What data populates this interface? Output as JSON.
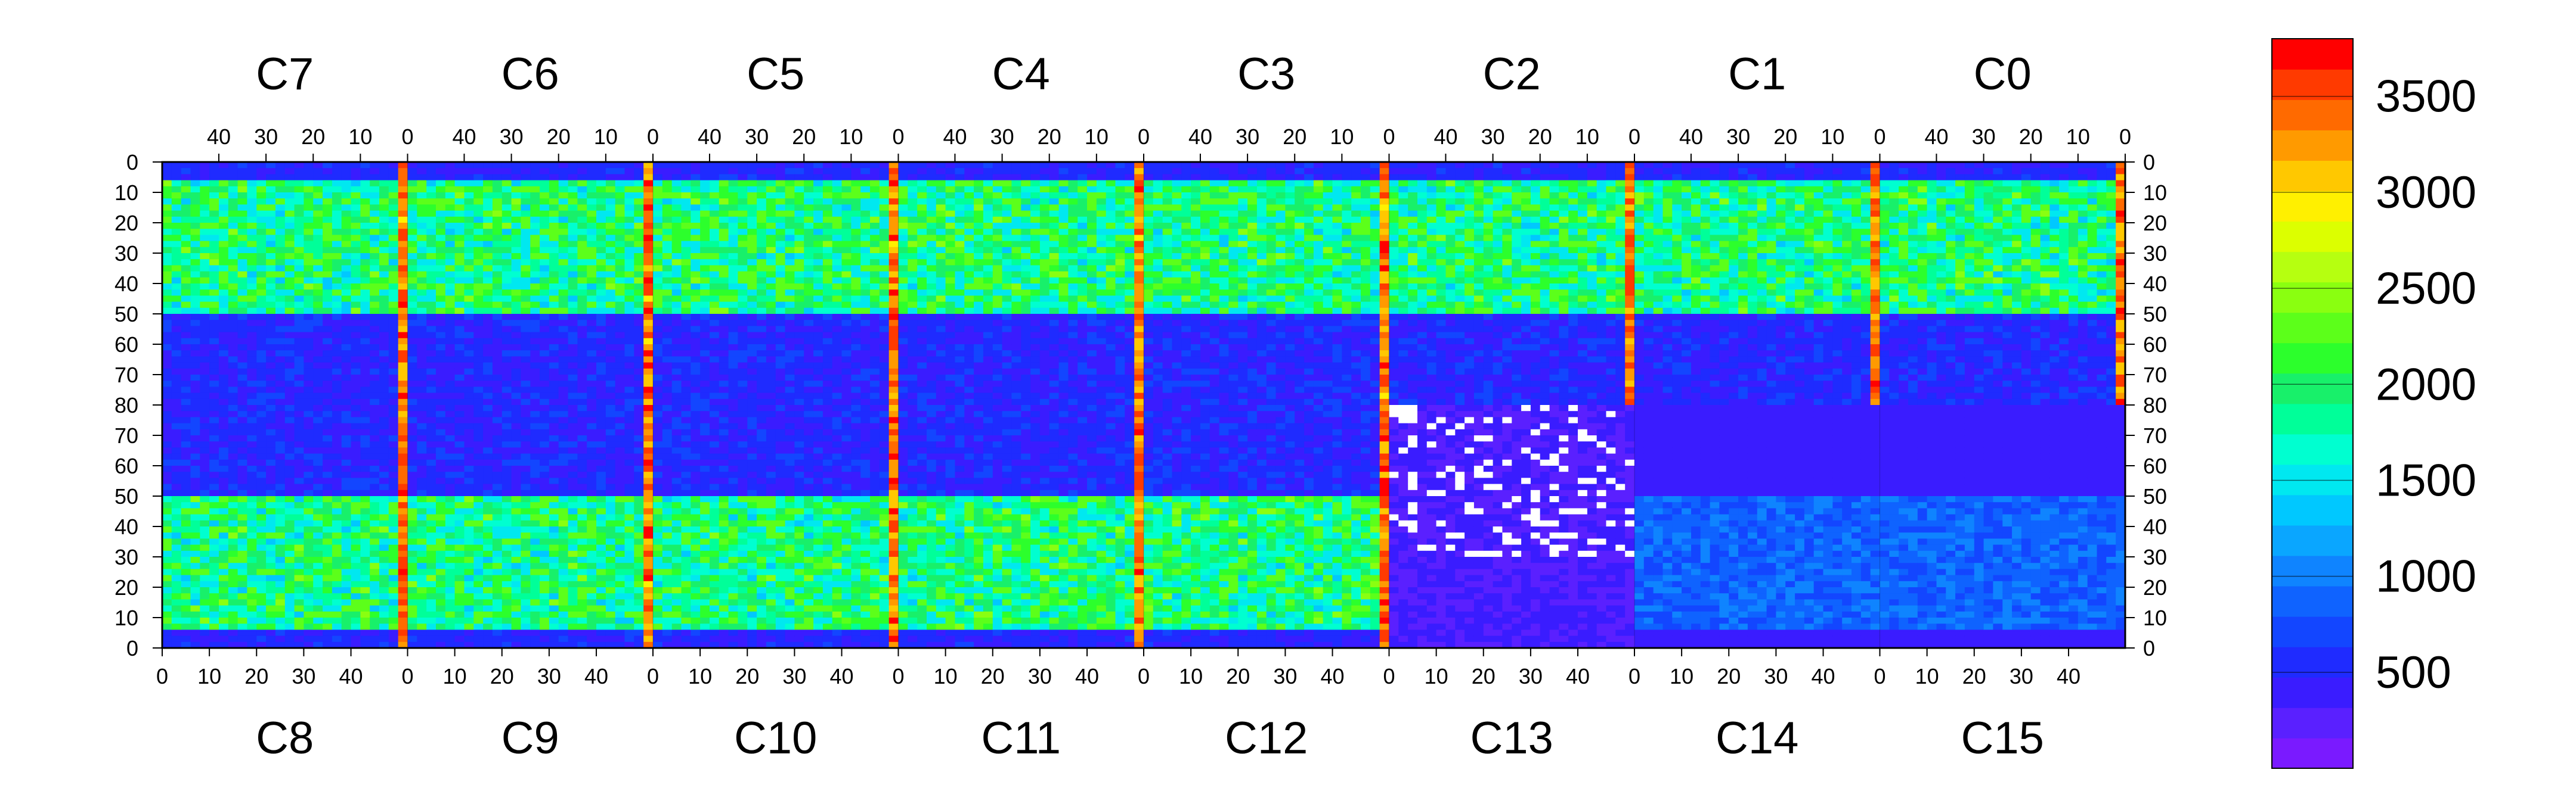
{
  "chart_data": {
    "type": "heatmap",
    "title": "",
    "xlabel": "",
    "ylabel": "",
    "top_chips": [
      "C7",
      "C6",
      "C5",
      "C4",
      "C3",
      "C2",
      "C1",
      "C0"
    ],
    "bottom_chips": [
      "C8",
      "C9",
      "C10",
      "C11",
      "C12",
      "C13",
      "C14",
      "C15"
    ],
    "columns_per_chip": 52,
    "rows_per_half": 80,
    "top_x_ticks": [
      "40",
      "30",
      "20",
      "10",
      "0"
    ],
    "bottom_x_ticks": [
      "0",
      "10",
      "20",
      "30",
      "40"
    ],
    "top_y_ticks": [
      "0",
      "10",
      "20",
      "30",
      "40",
      "50",
      "60",
      "70",
      "80"
    ],
    "bottom_y_ticks": [
      "80",
      "70",
      "60",
      "50",
      "40",
      "30",
      "20",
      "10",
      "0"
    ],
    "colorbar": {
      "range": [
        0,
        3800
      ],
      "tick_values": [
        500,
        1000,
        1500,
        2000,
        2500,
        3000,
        3500
      ],
      "tick_labels": [
        "500",
        "1000",
        "1500",
        "2000",
        "2500",
        "3000",
        "3500"
      ],
      "palette": [
        "#7a1aff",
        "#5a20ff",
        "#3a1cff",
        "#1f2bff",
        "#1346ff",
        "#0f63ff",
        "#0f84ff",
        "#0aa6ff",
        "#00c8ff",
        "#00e8f0",
        "#00ffd0",
        "#00ff99",
        "#18f06a",
        "#2cff2c",
        "#5cff1a",
        "#8aff10",
        "#b6ff10",
        "#dcff00",
        "#fff000",
        "#ffc800",
        "#ff9a00",
        "#ff6a00",
        "#ff3a00",
        "#ff0000"
      ]
    },
    "regions": {
      "background_range": [
        200,
        450
      ],
      "bulk_range": [
        1400,
        2400
      ],
      "hot_column_range": [
        3000,
        3700
      ],
      "cold_range": [
        200,
        550
      ],
      "dead_pixels_chip": "C13",
      "low_occupancy_chips": [
        "C13",
        "C14",
        "C15"
      ]
    }
  }
}
